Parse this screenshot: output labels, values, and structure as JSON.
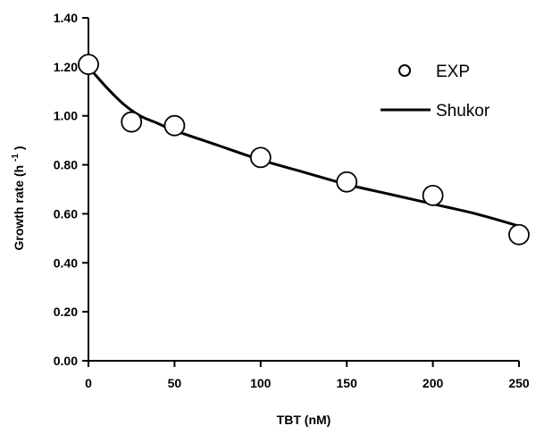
{
  "chart_data": {
    "type": "scatter",
    "xlabel": "TBT (nM)",
    "ylabel_main": "Growth rate (h",
    "ylabel_sup": "-1",
    "ylabel_close": ")",
    "xlim": [
      0,
      250
    ],
    "ylim": [
      0,
      1.4
    ],
    "x_ticks": [
      "0",
      "50",
      "100",
      "150",
      "200",
      "250"
    ],
    "y_ticks": [
      "0.00",
      "0.20",
      "0.40",
      "0.60",
      "0.80",
      "1.00",
      "1.20",
      "1.40"
    ],
    "grid": false,
    "legend_position": "top-right",
    "series": [
      {
        "name": "EXP",
        "kind": "markers",
        "marker": "open-circle",
        "x": [
          0,
          25,
          50,
          100,
          150,
          200,
          250
        ],
        "y": [
          1.21,
          0.975,
          0.96,
          0.83,
          0.73,
          0.675,
          0.515
        ]
      },
      {
        "name": "Shukor",
        "kind": "line",
        "color": "#000000",
        "x": [
          0,
          10,
          20,
          30,
          40,
          50,
          75,
          100,
          125,
          150,
          175,
          200,
          225,
          250
        ],
        "y": [
          1.2,
          1.12,
          1.05,
          1.0,
          0.97,
          0.94,
          0.88,
          0.82,
          0.77,
          0.72,
          0.68,
          0.64,
          0.6,
          0.55
        ]
      }
    ]
  }
}
